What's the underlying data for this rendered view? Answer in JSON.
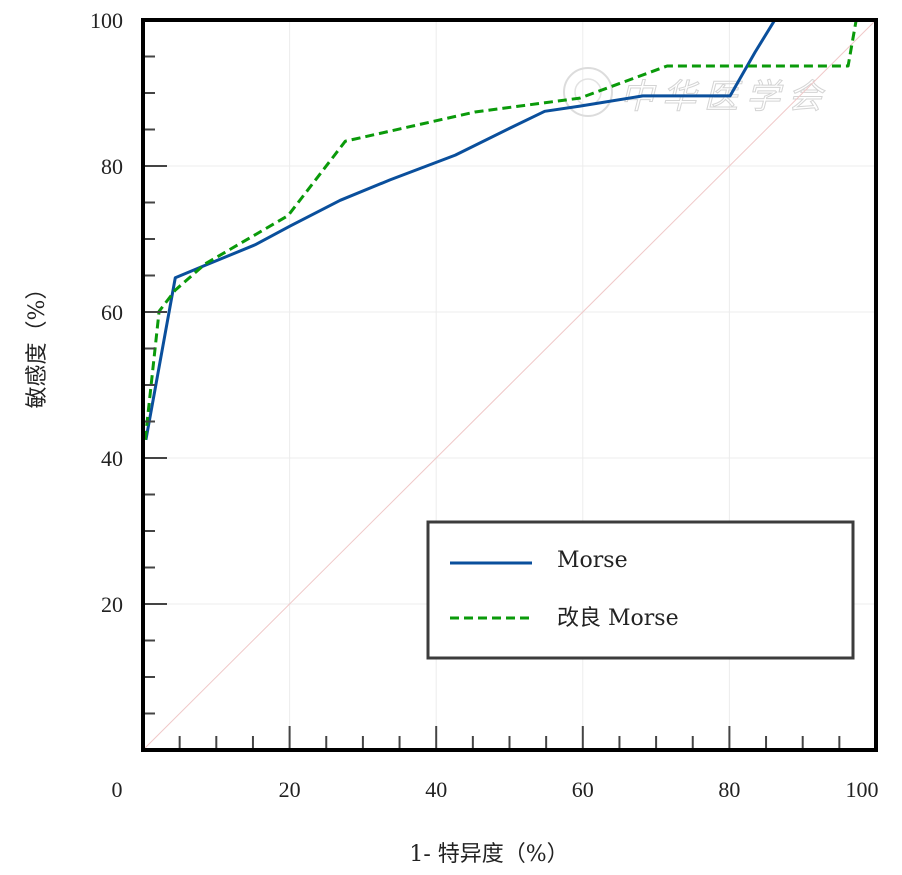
{
  "chart_data": {
    "type": "line",
    "title": "",
    "xlabel": "1- 特异度（%）",
    "ylabel": "敏感度（%）",
    "xlim": [
      0,
      100
    ],
    "ylim": [
      0,
      100
    ],
    "x_ticks": [
      0,
      20,
      40,
      60,
      80,
      100
    ],
    "y_ticks": [
      20,
      40,
      60,
      80,
      100
    ],
    "x_tick_labels": [
      "0",
      "20",
      "40",
      "60",
      "80",
      "100"
    ],
    "y_tick_labels": [
      "20",
      "40",
      "60",
      "80",
      "100"
    ],
    "minor_tick_step": 5,
    "grid": true,
    "legend_position": "bottom-right",
    "reference_line": {
      "name": "diagonal",
      "x": [
        0,
        100
      ],
      "y": [
        0,
        100
      ],
      "color": "#f0c8c8"
    },
    "series": [
      {
        "name": "Morse",
        "style": "solid",
        "color": "#0a4f9c",
        "x": [
          0.4,
          4.4,
          8.5,
          15.3,
          20.1,
          26.9,
          33.7,
          42.6,
          50.1,
          54.8,
          59.6,
          68.2,
          80.1,
          83.5,
          86.2
        ],
        "y": [
          42.5,
          64.7,
          66.4,
          69.2,
          71.8,
          75.3,
          78.1,
          81.5,
          85.2,
          87.5,
          88.2,
          89.6,
          89.6,
          95.6,
          100
        ]
      },
      {
        "name": "改良 Morse",
        "style": "dashed",
        "color": "#0a9a0a",
        "x": [
          0.3,
          2.2,
          4.4,
          8.5,
          19.8,
          27.6,
          45.3,
          59.6,
          71.5,
          96.2,
          97.3
        ],
        "y": [
          42.5,
          60.1,
          63.0,
          66.6,
          73.2,
          83.4,
          87.4,
          89.3,
          93.7,
          93.7,
          100
        ]
      }
    ],
    "legend": [
      {
        "label": "Morse",
        "style": "solid",
        "color": "#0a4f9c"
      },
      {
        "label": "改良 Morse",
        "style": "dashed",
        "color": "#0a9a0a"
      }
    ],
    "watermark": "中华医学会"
  }
}
